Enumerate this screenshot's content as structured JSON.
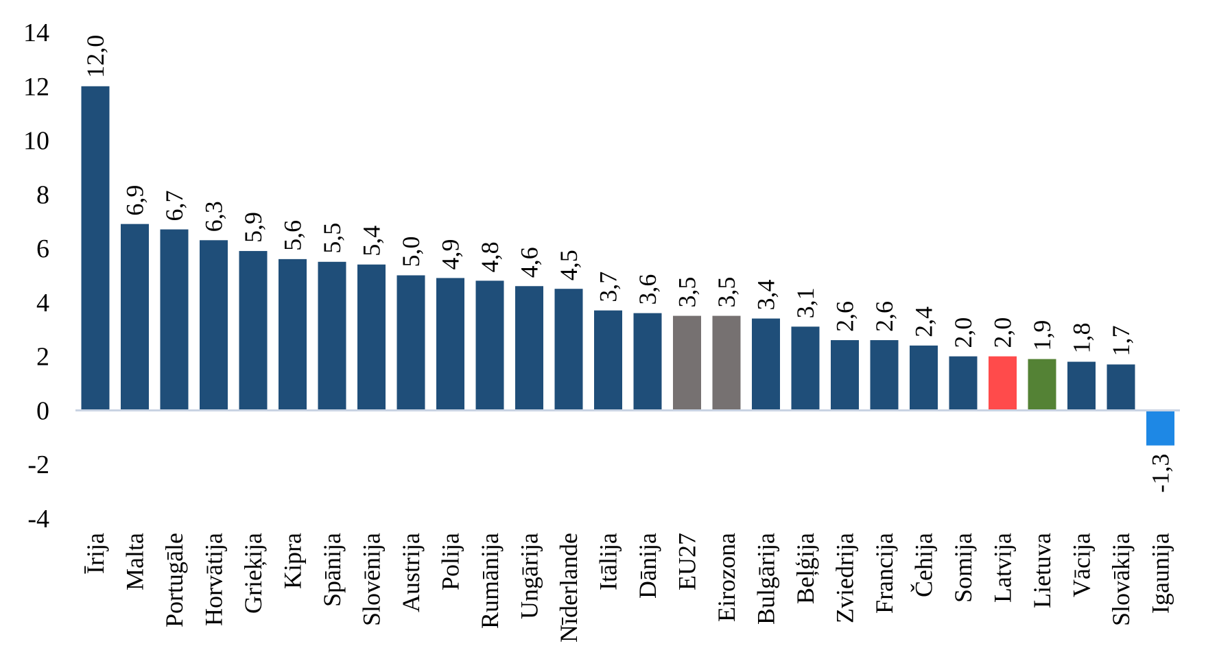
{
  "chart_data": {
    "type": "bar",
    "title": "",
    "xlabel": "",
    "ylabel": "",
    "ylim": [
      -4,
      14
    ],
    "yticks": [
      14,
      12,
      10,
      8,
      6,
      4,
      2,
      0,
      -2,
      -4
    ],
    "grid": false,
    "legend": "none",
    "categories": [
      "Īrija",
      "Malta",
      "Portugāle",
      "Horvātija",
      "Grieķija",
      "Kipra",
      "Spānija",
      "Slovēnija",
      "Austrija",
      "Polija",
      "Rumānija",
      "Ungārija",
      "Nīderlande",
      "Itālija",
      "Dānija",
      "EU27",
      "Eirozona",
      "Bulgārija",
      "Beļģija",
      "Zviedrija",
      "Francija",
      "Čehija",
      "Somija",
      "Latvija",
      "Lietuva",
      "Vācija",
      "Slovākija",
      "Igaunija"
    ],
    "values": [
      12.0,
      6.9,
      6.7,
      6.3,
      5.9,
      5.6,
      5.5,
      5.4,
      5.0,
      4.9,
      4.8,
      4.6,
      4.5,
      3.7,
      3.6,
      3.5,
      3.5,
      3.4,
      3.1,
      2.6,
      2.6,
      2.4,
      2.0,
      2.0,
      1.9,
      1.8,
      1.7,
      -1.3
    ],
    "value_labels": [
      "12,0",
      "6,9",
      "6,7",
      "6,3",
      "5,9",
      "5,6",
      "5,5",
      "5,4",
      "5,0",
      "4,9",
      "4,8",
      "4,6",
      "4,5",
      "3,7",
      "3,6",
      "3,5",
      "3,5",
      "3,4",
      "3,1",
      "2,6",
      "2,6",
      "2,4",
      "2,0",
      "2,0",
      "1,9",
      "1,8",
      "1,7",
      "-1,3"
    ],
    "tick_labels": [
      "14",
      "12",
      "10",
      "8",
      "6",
      "4",
      "2",
      "0",
      "-2",
      "-4"
    ],
    "colors": {
      "default": "#1f4e79",
      "EU27": "#767171",
      "Eirozona": "#767171",
      "Latvija": "#ff4b4b",
      "Lietuva": "#548235",
      "Igaunija": "#1e88e5",
      "axis": "#c9d3e3"
    }
  }
}
